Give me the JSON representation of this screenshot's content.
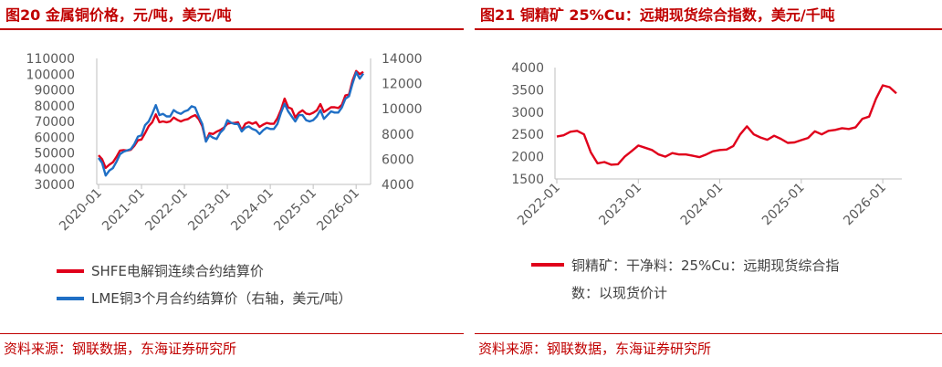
{
  "left_panel": {
    "title": "图20  金属铜价格，元/吨，美元/吨",
    "source": "资料来源：钢联数据，东海证券研究所"
  },
  "right_panel": {
    "title": "图21  铜精矿 25%Cu：远期现货综合指数，美元/千吨",
    "source": "资料来源：钢联数据，东海证券研究所"
  },
  "colors": {
    "accent": "#c00000",
    "shfe": "#e0001b",
    "lme": "#1f6fc5",
    "axis": "#bfbfbf",
    "text": "#595959"
  },
  "chart_data": [
    {
      "type": "line",
      "x_ticks": [
        "2020-01",
        "2021-01",
        "2022-01",
        "2023-01",
        "2024-01",
        "2025-01",
        "2026-01"
      ],
      "y_left": {
        "ticks": [
          "30000",
          "40000",
          "50000",
          "60000",
          "70000",
          "80000",
          "90000",
          "100000",
          "110000"
        ],
        "ylim": [
          30000,
          110000
        ]
      },
      "y_right": {
        "ticks": [
          "4000",
          "6000",
          "8000",
          "10000",
          "12000",
          "14000"
        ],
        "ylim": [
          4000,
          14000
        ]
      },
      "xlim": [
        "2020-01",
        "2026-03"
      ],
      "legend_position": "bottom",
      "series": [
        {
          "name": "SHFE电解铜连续合约结算价",
          "axis": "left",
          "points": [
            [
              "2020-01",
              48500
            ],
            [
              "2020-02",
              46000
            ],
            [
              "2020-03",
              40500
            ],
            [
              "2020-04",
              42500
            ],
            [
              "2020-05",
              44000
            ],
            [
              "2020-06",
              47500
            ],
            [
              "2020-07",
              51500
            ],
            [
              "2020-08",
              51800
            ],
            [
              "2020-09",
              51500
            ],
            [
              "2020-10",
              52000
            ],
            [
              "2020-11",
              54500
            ],
            [
              "2020-12",
              58000
            ],
            [
              "2021-01",
              58500
            ],
            [
              "2021-02",
              62500
            ],
            [
              "2021-03",
              67000
            ],
            [
              "2021-04",
              69500
            ],
            [
              "2021-05",
              74500
            ],
            [
              "2021-06",
              69500
            ],
            [
              "2021-07",
              70000
            ],
            [
              "2021-08",
              69500
            ],
            [
              "2021-09",
              70000
            ],
            [
              "2021-10",
              72500
            ],
            [
              "2021-11",
              71000
            ],
            [
              "2021-12",
              70000
            ],
            [
              "2022-01",
              71000
            ],
            [
              "2022-02",
              71500
            ],
            [
              "2022-03",
              73000
            ],
            [
              "2022-04",
              74000
            ],
            [
              "2022-05",
              71500
            ],
            [
              "2022-06",
              67000
            ],
            [
              "2022-07",
              57500
            ],
            [
              "2022-08",
              62500
            ],
            [
              "2022-09",
              62000
            ],
            [
              "2022-10",
              63500
            ],
            [
              "2022-11",
              64500
            ],
            [
              "2022-12",
              66000
            ],
            [
              "2023-01",
              68500
            ],
            [
              "2023-02",
              69000
            ],
            [
              "2023-03",
              69000
            ],
            [
              "2023-04",
              69500
            ],
            [
              "2023-05",
              64500
            ],
            [
              "2023-06",
              68500
            ],
            [
              "2023-07",
              69500
            ],
            [
              "2023-08",
              68500
            ],
            [
              "2023-09",
              69500
            ],
            [
              "2023-10",
              66500
            ],
            [
              "2023-11",
              68000
            ],
            [
              "2023-12",
              69000
            ],
            [
              "2024-01",
              68500
            ],
            [
              "2024-02",
              68500
            ],
            [
              "2024-03",
              72000
            ],
            [
              "2024-04",
              77500
            ],
            [
              "2024-05",
              84500
            ],
            [
              "2024-06",
              79000
            ],
            [
              "2024-07",
              78000
            ],
            [
              "2024-08",
              72500
            ],
            [
              "2024-09",
              75500
            ],
            [
              "2024-10",
              77000
            ],
            [
              "2024-11",
              75000
            ],
            [
              "2024-12",
              74500
            ],
            [
              "2025-01",
              75500
            ],
            [
              "2025-02",
              77000
            ],
            [
              "2025-03",
              81000
            ],
            [
              "2025-04",
              76000
            ],
            [
              "2025-05",
              77500
            ],
            [
              "2025-06",
              79000
            ],
            [
              "2025-07",
              79000
            ],
            [
              "2025-08",
              78500
            ],
            [
              "2025-09",
              80500
            ],
            [
              "2025-10",
              86500
            ],
            [
              "2025-11",
              87000
            ],
            [
              "2025-12",
              96000
            ],
            [
              "2026-01",
              102000
            ],
            [
              "2026-02",
              100000
            ],
            [
              "2026-03",
              101500
            ]
          ]
        },
        {
          "name": "LME铜3个月合约结算价（右轴，美元/吨）",
          "axis": "right",
          "points": [
            [
              "2020-01",
              6100
            ],
            [
              "2020-02",
              5700
            ],
            [
              "2020-03",
              4700
            ],
            [
              "2020-04",
              5100
            ],
            [
              "2020-05",
              5300
            ],
            [
              "2020-06",
              5800
            ],
            [
              "2020-07",
              6400
            ],
            [
              "2020-08",
              6600
            ],
            [
              "2020-09",
              6700
            ],
            [
              "2020-10",
              6800
            ],
            [
              "2020-11",
              7200
            ],
            [
              "2020-12",
              7800
            ],
            [
              "2021-01",
              7900
            ],
            [
              "2021-02",
              8700
            ],
            [
              "2021-03",
              9000
            ],
            [
              "2021-04",
              9600
            ],
            [
              "2021-05",
              10300
            ],
            [
              "2021-06",
              9500
            ],
            [
              "2021-07",
              9600
            ],
            [
              "2021-08",
              9400
            ],
            [
              "2021-09",
              9400
            ],
            [
              "2021-10",
              9900
            ],
            [
              "2021-11",
              9700
            ],
            [
              "2021-12",
              9600
            ],
            [
              "2022-01",
              9800
            ],
            [
              "2022-02",
              9900
            ],
            [
              "2022-03",
              10200
            ],
            [
              "2022-04",
              10100
            ],
            [
              "2022-05",
              9400
            ],
            [
              "2022-06",
              8800
            ],
            [
              "2022-07",
              7400
            ],
            [
              "2022-08",
              7900
            ],
            [
              "2022-09",
              7700
            ],
            [
              "2022-10",
              7600
            ],
            [
              "2022-11",
              8100
            ],
            [
              "2022-12",
              8400
            ],
            [
              "2023-01",
              9100
            ],
            [
              "2023-02",
              8900
            ],
            [
              "2023-03",
              8800
            ],
            [
              "2023-04",
              8800
            ],
            [
              "2023-05",
              8200
            ],
            [
              "2023-06",
              8500
            ],
            [
              "2023-07",
              8600
            ],
            [
              "2023-08",
              8400
            ],
            [
              "2023-09",
              8300
            ],
            [
              "2023-10",
              8000
            ],
            [
              "2023-11",
              8300
            ],
            [
              "2023-12",
              8500
            ],
            [
              "2024-01",
              8400
            ],
            [
              "2024-02",
              8400
            ],
            [
              "2024-03",
              8800
            ],
            [
              "2024-04",
              9700
            ],
            [
              "2024-05",
              10400
            ],
            [
              "2024-06",
              9800
            ],
            [
              "2024-07",
              9400
            ],
            [
              "2024-08",
              9000
            ],
            [
              "2024-09",
              9500
            ],
            [
              "2024-10",
              9500
            ],
            [
              "2024-11",
              9100
            ],
            [
              "2024-12",
              9000
            ],
            [
              "2025-01",
              9100
            ],
            [
              "2025-02",
              9400
            ],
            [
              "2025-03",
              9900
            ],
            [
              "2025-04",
              9200
            ],
            [
              "2025-05",
              9500
            ],
            [
              "2025-06",
              9800
            ],
            [
              "2025-07",
              9700
            ],
            [
              "2025-08",
              9700
            ],
            [
              "2025-09",
              10100
            ],
            [
              "2025-10",
              10800
            ],
            [
              "2025-11",
              11000
            ],
            [
              "2025-12",
              12000
            ],
            [
              "2026-01",
              12900
            ],
            [
              "2026-02",
              12400
            ],
            [
              "2026-03",
              12800
            ]
          ]
        }
      ]
    },
    {
      "type": "line",
      "x_ticks": [
        "2022-01",
        "2023-01",
        "2024-01",
        "2025-01",
        "2026-01"
      ],
      "y_ticks": [
        "1500",
        "2000",
        "2500",
        "3000",
        "3500",
        "4000"
      ],
      "ylim": [
        1500,
        4000
      ],
      "xlim": [
        "2022-01",
        "2026-03"
      ],
      "legend_position": "bottom",
      "series": [
        {
          "name": "铜精矿：干净料：25%Cu：远期现货综合指数：以现货价计",
          "points": [
            [
              "2022-01",
              2450
            ],
            [
              "2022-02",
              2480
            ],
            [
              "2022-03",
              2560
            ],
            [
              "2022-04",
              2580
            ],
            [
              "2022-05",
              2500
            ],
            [
              "2022-06",
              2100
            ],
            [
              "2022-07",
              1850
            ],
            [
              "2022-08",
              1880
            ],
            [
              "2022-09",
              1820
            ],
            [
              "2022-10",
              1830
            ],
            [
              "2022-11",
              2000
            ],
            [
              "2022-12",
              2120
            ],
            [
              "2023-01",
              2250
            ],
            [
              "2023-02",
              2200
            ],
            [
              "2023-03",
              2150
            ],
            [
              "2023-04",
              2050
            ],
            [
              "2023-05",
              2000
            ],
            [
              "2023-06",
              2080
            ],
            [
              "2023-07",
              2050
            ],
            [
              "2023-08",
              2050
            ],
            [
              "2023-09",
              2020
            ],
            [
              "2023-10",
              1990
            ],
            [
              "2023-11",
              2050
            ],
            [
              "2023-12",
              2120
            ],
            [
              "2024-01",
              2150
            ],
            [
              "2024-02",
              2160
            ],
            [
              "2024-03",
              2240
            ],
            [
              "2024-04",
              2500
            ],
            [
              "2024-05",
              2680
            ],
            [
              "2024-06",
              2500
            ],
            [
              "2024-07",
              2430
            ],
            [
              "2024-08",
              2380
            ],
            [
              "2024-09",
              2470
            ],
            [
              "2024-10",
              2400
            ],
            [
              "2024-11",
              2310
            ],
            [
              "2024-12",
              2320
            ],
            [
              "2025-01",
              2370
            ],
            [
              "2025-02",
              2420
            ],
            [
              "2025-03",
              2570
            ],
            [
              "2025-04",
              2500
            ],
            [
              "2025-05",
              2580
            ],
            [
              "2025-06",
              2600
            ],
            [
              "2025-07",
              2640
            ],
            [
              "2025-08",
              2620
            ],
            [
              "2025-09",
              2660
            ],
            [
              "2025-10",
              2850
            ],
            [
              "2025-11",
              2900
            ],
            [
              "2025-12",
              3300
            ],
            [
              "2026-01",
              3600
            ],
            [
              "2026-02",
              3560
            ],
            [
              "2026-03",
              3420
            ]
          ]
        }
      ]
    }
  ]
}
